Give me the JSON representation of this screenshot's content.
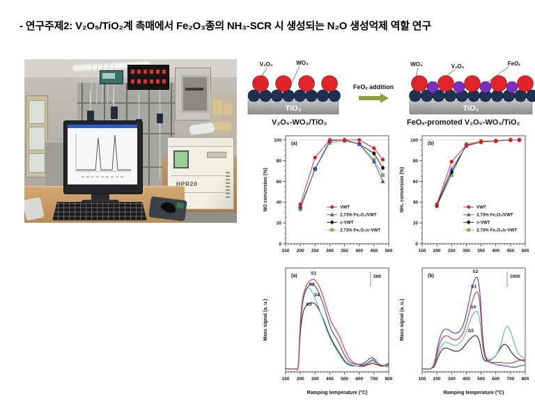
{
  "page": {
    "title": "- 연구주제2: V₂O₅/TiO₂계 촉매에서 Fe₂O₃종의 NH₃-SCR 시 생성되는 N₂O 생성억제 역할 연구"
  },
  "photo": {
    "instrument_label": "HPR20"
  },
  "diagram": {
    "arrow_label": "FeOₓ addition",
    "left_labels": {
      "v2o5": "V₂O₅",
      "wo3": "WO₃",
      "tio2": "TiO₂"
    },
    "right_labels": {
      "wo3": "WO₃",
      "v2o5": "V₂O₅",
      "feox": "FeOₓ",
      "tio2": "TiO₂"
    },
    "colors": {
      "v2o5_sphere": "#e0242a",
      "wo3_sphere": "#1d3253",
      "feox_sphere": "#7b2fbe",
      "support": "#9b9b9b",
      "arrow": "#8b9f3e"
    }
  },
  "chart_data": [
    {
      "type": "line",
      "title": "V₂O₅-WO₃/TiO₂",
      "panel_label": "(a)",
      "xlabel": "",
      "ylabel": "NO conversion (%)",
      "xlim": [
        150,
        500
      ],
      "ylim": [
        0,
        104
      ],
      "xticks": [
        150,
        200,
        250,
        300,
        350,
        400,
        450,
        500
      ],
      "yticks": [
        0,
        20,
        40,
        60,
        80,
        100
      ],
      "xminor": 10,
      "yminor": 5,
      "gridline_y": 100,
      "legend": true,
      "x": [
        200,
        250,
        300,
        350,
        400,
        450,
        480
      ],
      "series": [
        {
          "name": "VWT",
          "color": "#e8131d",
          "marker": "circle",
          "values": [
            38,
            83,
            100,
            100,
            100,
            92,
            81
          ]
        },
        {
          "name": "2.73% Fe₂O₃/VWT",
          "color": "#3c52cc",
          "marker": "triangle",
          "values": [
            35,
            72,
            99,
            100,
            96,
            79,
            60
          ]
        },
        {
          "name": "c-VWT",
          "color": "#000000",
          "marker": "diamond",
          "values": [
            35,
            72,
            99,
            100,
            96,
            87,
            73
          ]
        },
        {
          "name": "2.73% Fe₂O₃/c-VWT",
          "color": "#7cb342",
          "marker": "square",
          "values": [
            33,
            72,
            97,
            99,
            96,
            81,
            66
          ]
        }
      ]
    },
    {
      "type": "line",
      "title": "FeOₓ-promoted V₂O₅-WO₃/TiO₂",
      "panel_label": "(b)",
      "xlabel": "",
      "ylabel": "NH₃ conversion (%)",
      "xlim": [
        150,
        500
      ],
      "ylim": [
        0,
        104
      ],
      "xticks": [
        150,
        200,
        250,
        300,
        350,
        400,
        450,
        500
      ],
      "yticks": [
        0,
        20,
        40,
        60,
        80,
        100
      ],
      "xminor": 10,
      "yminor": 5,
      "gridline_y": 100,
      "legend": true,
      "x": [
        200,
        250,
        300,
        350,
        400,
        450,
        480
      ],
      "series": [
        {
          "name": "VWT",
          "color": "#e8131d",
          "marker": "circle",
          "values": [
            38,
            79,
            95,
            98,
            99,
            100,
            100
          ]
        },
        {
          "name": "2.73% Fe₂O₃/VWT",
          "color": "#3c52cc",
          "marker": "triangle",
          "values": [
            38,
            72,
            94,
            98,
            99,
            100,
            100
          ]
        },
        {
          "name": "c-VWT",
          "color": "#000000",
          "marker": "diamond",
          "values": [
            37,
            69,
            95,
            98,
            99,
            100,
            100
          ]
        },
        {
          "name": "2.73% Fe₂O₃/c-VWT",
          "color": "#7cb342",
          "marker": "square",
          "values": [
            36,
            66,
            96,
            99,
            99,
            100,
            100
          ]
        }
      ]
    },
    {
      "type": "line-smooth",
      "panel_label": "(a)",
      "xlabel": "Ramping temperature (°C)",
      "ylabel": "Mass signal (a. u.)",
      "xlim": [
        100,
        800
      ],
      "ylim": [
        0,
        110
      ],
      "xticks": [
        100,
        200,
        300,
        400,
        500,
        600,
        700,
        800
      ],
      "yticks": [],
      "xminor": 20,
      "scalebar": "500",
      "x": [
        100,
        150,
        170,
        185,
        195,
        205,
        215,
        225,
        240,
        255,
        270,
        285,
        300,
        315,
        330,
        350,
        370,
        390,
        410,
        430,
        450,
        470,
        490,
        510,
        530,
        550,
        570,
        590,
        610,
        630,
        650,
        670,
        690,
        710,
        730,
        750,
        770,
        800
      ],
      "series": [
        {
          "name": "S1",
          "color": "#cf3333",
          "values": [
            3,
            3,
            3,
            5,
            35,
            62,
            76,
            84,
            91,
            95,
            97,
            98,
            97,
            94,
            90,
            82,
            72,
            62,
            53,
            47,
            42,
            36,
            28,
            21,
            15,
            11,
            9,
            8,
            7,
            7,
            8,
            10,
            12,
            10,
            8,
            7,
            7,
            9
          ]
        },
        {
          "name": "S2",
          "color": "#3d3dcc",
          "values": [
            3,
            3,
            3,
            5,
            32,
            58,
            72,
            80,
            87,
            91,
            93,
            93,
            91,
            87,
            82,
            74,
            64,
            54,
            45,
            39,
            34,
            28,
            21,
            15,
            11,
            9,
            8,
            8,
            8,
            9,
            11,
            14,
            15,
            11,
            8,
            7,
            7,
            8
          ]
        },
        {
          "name": "S4",
          "color": "#4fbe8d",
          "values": [
            3,
            3,
            3,
            6,
            38,
            64,
            77,
            84,
            88,
            89,
            87,
            83,
            78,
            72,
            66,
            57,
            48,
            40,
            33,
            27,
            22,
            17,
            12,
            9,
            7,
            6,
            6,
            6,
            7,
            8,
            9,
            11,
            13,
            13,
            9,
            7,
            6,
            7
          ]
        },
        {
          "name": "S3",
          "color": "#222222",
          "values": [
            3,
            3,
            3,
            5,
            30,
            50,
            60,
            66,
            70,
            72,
            73,
            73,
            72,
            69,
            65,
            58,
            50,
            42,
            35,
            29,
            24,
            19,
            14,
            10,
            8,
            7,
            6,
            6,
            6,
            6,
            7,
            8,
            9,
            8,
            7,
            6,
            6,
            6
          ]
        }
      ],
      "curve_labels": [
        {
          "text": "S1",
          "x": 290,
          "y": 103
        },
        {
          "text": "S2",
          "x": 278,
          "y": 91
        },
        {
          "text": "S4",
          "x": 312,
          "y": 80
        },
        {
          "text": "S3",
          "x": 258,
          "y": 70
        }
      ]
    },
    {
      "type": "line-smooth",
      "panel_label": "(b)",
      "xlabel": "Ramping temperature (°C)",
      "ylabel": "Mass signal (a. u.)",
      "xlim": [
        100,
        800
      ],
      "ylim": [
        0,
        110
      ],
      "xticks": [
        100,
        200,
        300,
        400,
        500,
        600,
        700,
        800
      ],
      "yticks": [],
      "xminor": 20,
      "scalebar": "1000",
      "x": [
        100,
        150,
        165,
        180,
        195,
        210,
        225,
        240,
        255,
        270,
        285,
        300,
        315,
        330,
        345,
        360,
        375,
        390,
        405,
        420,
        435,
        450,
        465,
        480,
        495,
        510,
        525,
        540,
        560,
        580,
        600,
        620,
        640,
        660,
        680,
        700,
        720,
        740,
        760,
        800
      ],
      "series": [
        {
          "name": "S1",
          "color": "#cf3333",
          "values": [
            3,
            3,
            4,
            7,
            15,
            25,
            32,
            36,
            38,
            38,
            37,
            35,
            34,
            34,
            35,
            37,
            40,
            46,
            54,
            63,
            72,
            79,
            84,
            83,
            67,
            35,
            17,
            12,
            10,
            10,
            10,
            10,
            10,
            9,
            9,
            9,
            10,
            11,
            12,
            13
          ]
        },
        {
          "name": "S2",
          "color": "#3d3dcc",
          "values": [
            3,
            3,
            4,
            8,
            18,
            30,
            38,
            43,
            45,
            45,
            44,
            42,
            41,
            41,
            42,
            44,
            48,
            55,
            65,
            76,
            87,
            95,
            100,
            97,
            78,
            40,
            20,
            13,
            10,
            9,
            8,
            7,
            7,
            6,
            6,
            5,
            5,
            5,
            6,
            7
          ]
        },
        {
          "name": "S4",
          "color": "#4fbe8d",
          "values": [
            3,
            3,
            4,
            6,
            12,
            20,
            26,
            29,
            31,
            31,
            30,
            29,
            28,
            28,
            29,
            31,
            34,
            39,
            45,
            52,
            58,
            62,
            64,
            62,
            50,
            28,
            17,
            14,
            13,
            14,
            17,
            23,
            32,
            44,
            48,
            43,
            33,
            24,
            18,
            14
          ]
        },
        {
          "name": "S3",
          "color": "#222222",
          "values": [
            3,
            3,
            4,
            5,
            10,
            16,
            21,
            24,
            25,
            25,
            24,
            23,
            22,
            22,
            22,
            23,
            25,
            28,
            31,
            34,
            36,
            38,
            38,
            36,
            28,
            16,
            12,
            11,
            12,
            14,
            17,
            22,
            27,
            29,
            27,
            22,
            18,
            15,
            13,
            11
          ]
        }
      ],
      "curve_labels": [
        {
          "text": "S2",
          "x": 462,
          "y": 105
        },
        {
          "text": "S1",
          "x": 450,
          "y": 89
        },
        {
          "text": "S4",
          "x": 446,
          "y": 67
        },
        {
          "text": "S3",
          "x": 430,
          "y": 42
        }
      ]
    }
  ]
}
